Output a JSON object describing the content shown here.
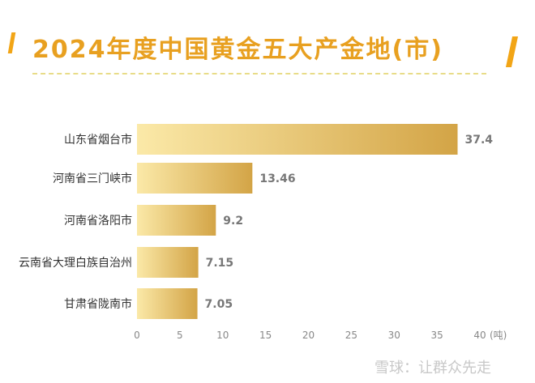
{
  "title": "2024年度中国黄金五大产金地(市)",
  "watermark": "雪球：让群众先走",
  "chart_data": {
    "type": "bar",
    "orientation": "horizontal",
    "title": "2024年度中国黄金五大产金地(市)",
    "categories": [
      "山东省烟台市",
      "河南省三门峡市",
      "河南省洛阳市",
      "云南省大理白族自治州",
      "甘肃省陇南市"
    ],
    "values": [
      37.4,
      13.46,
      9.2,
      7.15,
      7.05
    ],
    "value_labels": [
      "37.4",
      "13.46",
      "9.2",
      "7.15",
      "7.05"
    ],
    "xlim": [
      0,
      40
    ],
    "xticks": [
      "0",
      "5",
      "10",
      "15",
      "20",
      "25",
      "30",
      "35",
      "40"
    ],
    "xunit": "(吨)",
    "grid": false,
    "colors": {
      "bar_start": "#fbe9a8",
      "bar_end": "#d3a446",
      "title": "#e8a020"
    }
  }
}
